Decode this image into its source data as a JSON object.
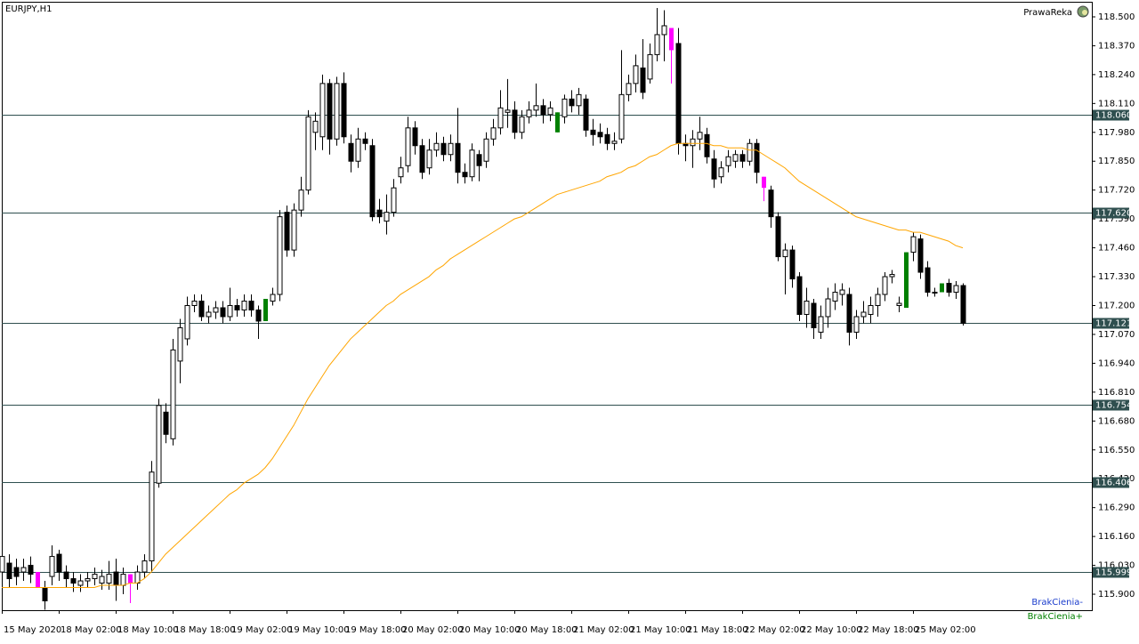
{
  "chart_data": {
    "type": "candlestick",
    "title": "EURJPY,H1",
    "expert": "PrawaReka",
    "categories": [
      "15 May 2020",
      null,
      null,
      null,
      null,
      null,
      null,
      null,
      "18 May 02:00",
      null,
      null,
      null,
      null,
      null,
      null,
      null,
      "18 May 10:00",
      null,
      null,
      null,
      null,
      null,
      null,
      null,
      "18 May 18:00",
      null,
      null,
      null,
      null,
      null,
      null,
      null,
      "19 May 02:00",
      null,
      null,
      null,
      null,
      null,
      null,
      null,
      "19 May 10:00",
      null,
      null,
      null,
      null,
      null,
      null,
      null,
      "19 May 18:00",
      null,
      null,
      null,
      null,
      null,
      null,
      null,
      "20 May 02:00",
      null,
      null,
      null,
      null,
      null,
      null,
      null,
      "20 May 10:00",
      null,
      null,
      null,
      null,
      null,
      null,
      null,
      "20 May 18:00",
      null,
      null,
      null,
      null,
      null,
      null,
      null,
      "21 May 02:00",
      null,
      null,
      null,
      null,
      null,
      null,
      null,
      "21 May 10:00",
      null,
      null,
      null,
      null,
      null,
      null,
      null,
      "21 May 18:00",
      null,
      null,
      null,
      null,
      null,
      null,
      null,
      "22 May 02:00",
      null,
      null,
      null,
      null,
      null,
      null,
      null,
      "22 May 10:00",
      null,
      null,
      null,
      null,
      null,
      null,
      null,
      "22 May 18:00",
      null,
      null,
      null,
      null,
      null,
      null,
      null,
      "25 May 02:00",
      null,
      null,
      null,
      null,
      null,
      null,
      null
    ],
    "open": [
      116.0,
      116.04,
      116.02,
      116.0,
      116.03,
      116.0,
      115.93,
      115.98,
      116.08,
      116.0,
      115.97,
      115.94,
      115.96,
      115.97,
      115.95,
      115.95,
      116.0,
      115.94,
      115.99,
      115.95,
      116.0,
      116.05,
      116.4,
      116.72,
      116.6,
      116.95,
      117.05,
      117.2,
      117.22,
      117.15,
      117.17,
      117.19,
      117.15,
      117.2,
      117.18,
      117.22,
      117.18,
      117.13,
      117.22,
      117.25,
      117.62,
      117.45,
      117.63,
      117.72,
      117.98,
      117.96,
      118.2,
      117.95,
      118.2,
      117.93,
      117.85,
      117.95,
      117.92,
      117.63,
      117.58,
      117.62,
      117.78,
      117.83,
      118.0,
      117.92,
      117.82,
      117.9,
      117.93,
      117.88,
      117.93,
      117.8,
      117.78,
      117.88,
      117.85,
      117.95,
      118.0,
      118.07,
      118.08,
      117.98,
      118.05,
      118.08,
      118.1,
      118.06,
      117.98,
      118.05,
      118.13,
      118.1,
      118.13,
      117.99,
      117.98,
      117.97,
      117.93,
      117.95,
      118.15,
      118.2,
      118.27,
      118.22,
      118.33,
      118.42,
      118.45,
      118.38,
      117.93,
      117.92,
      117.95,
      117.97,
      117.86,
      117.78,
      117.83,
      117.85,
      117.88,
      117.85,
      117.93,
      117.78,
      117.72,
      117.6,
      117.42,
      117.45,
      117.33,
      117.16,
      117.21,
      117.08,
      117.15,
      117.22,
      117.25,
      117.25,
      117.08,
      117.15,
      117.16,
      117.2,
      117.25,
      117.33,
      117.2,
      117.19,
      117.44,
      117.5,
      117.37,
      117.26,
      117.26,
      117.3,
      117.26,
      117.29
    ],
    "high": [
      116.2,
      116.08,
      116.06,
      116.06,
      116.07,
      116.0,
      115.96,
      116.12,
      116.1,
      116.03,
      116.0,
      115.99,
      116.0,
      116.02,
      116.01,
      116.05,
      116.06,
      116.02,
      115.99,
      116.03,
      116.08,
      116.5,
      116.78,
      116.76,
      117.05,
      117.14,
      117.24,
      117.25,
      117.25,
      117.2,
      117.22,
      117.22,
      117.28,
      117.23,
      117.25,
      117.25,
      117.2,
      117.23,
      117.28,
      117.63,
      117.65,
      117.66,
      117.78,
      118.08,
      118.07,
      118.24,
      118.22,
      118.23,
      118.25,
      117.97,
      118.0,
      117.98,
      117.95,
      117.68,
      117.7,
      117.77,
      117.87,
      118.05,
      118.03,
      117.95,
      117.95,
      117.98,
      117.96,
      117.97,
      118.09,
      117.84,
      117.93,
      117.9,
      117.98,
      118.04,
      118.17,
      118.22,
      118.12,
      118.08,
      118.12,
      118.2,
      118.13,
      118.12,
      118.07,
      118.15,
      118.17,
      118.18,
      118.15,
      118.04,
      118.02,
      118.0,
      117.98,
      118.35,
      118.24,
      118.33,
      118.4,
      118.38,
      118.54,
      118.53,
      118.45,
      118.45,
      117.97,
      117.99,
      118.05,
      118.0,
      117.9,
      117.85,
      117.9,
      117.9,
      117.9,
      117.95,
      117.95,
      117.78,
      117.74,
      117.62,
      117.48,
      117.47,
      117.35,
      117.28,
      117.23,
      117.2,
      117.28,
      117.3,
      117.3,
      117.28,
      117.18,
      117.22,
      117.24,
      117.28,
      117.35,
      117.36,
      117.24,
      117.44,
      117.53,
      117.52,
      117.4,
      117.28,
      117.3,
      117.32,
      117.31,
      117.3
    ],
    "low": [
      115.96,
      115.93,
      115.94,
      115.96,
      115.95,
      115.93,
      115.83,
      115.94,
      115.96,
      115.93,
      115.91,
      115.91,
      115.93,
      115.94,
      115.92,
      115.92,
      115.87,
      115.9,
      115.86,
      115.92,
      115.97,
      116.0,
      116.38,
      116.58,
      116.57,
      116.85,
      117.02,
      117.17,
      117.13,
      117.12,
      117.14,
      117.12,
      117.13,
      117.15,
      117.15,
      117.15,
      117.05,
      117.13,
      117.2,
      117.22,
      117.42,
      117.42,
      117.6,
      117.7,
      117.9,
      117.9,
      117.88,
      117.92,
      117.93,
      117.8,
      117.82,
      117.9,
      117.58,
      117.57,
      117.52,
      117.6,
      117.75,
      117.8,
      117.88,
      117.77,
      117.79,
      117.87,
      117.85,
      117.85,
      117.75,
      117.75,
      117.76,
      117.76,
      117.82,
      117.92,
      117.97,
      118.0,
      117.95,
      117.95,
      118.02,
      118.05,
      118.02,
      118.03,
      117.98,
      118.02,
      118.07,
      118.06,
      117.96,
      117.92,
      117.93,
      117.9,
      117.9,
      117.93,
      118.12,
      118.16,
      118.13,
      118.2,
      118.3,
      118.3,
      118.2,
      117.88,
      117.85,
      117.82,
      117.9,
      117.84,
      117.73,
      117.75,
      117.8,
      117.82,
      117.82,
      117.83,
      117.75,
      117.67,
      117.55,
      117.4,
      117.25,
      117.28,
      117.13,
      117.1,
      117.05,
      117.05,
      117.1,
      117.18,
      117.2,
      117.02,
      117.05,
      117.12,
      117.12,
      117.15,
      117.22,
      117.3,
      117.17,
      117.19,
      117.4,
      117.32,
      117.24,
      117.24,
      117.26,
      117.24,
      117.23,
      117.11
    ],
    "close": [
      116.07,
      115.97,
      115.98,
      116.02,
      115.99,
      115.93,
      115.87,
      116.07,
      116.0,
      115.97,
      115.95,
      115.96,
      115.97,
      115.99,
      115.98,
      115.99,
      115.94,
      115.99,
      115.95,
      116.0,
      116.05,
      116.45,
      116.75,
      116.62,
      117.0,
      117.1,
      117.2,
      117.22,
      117.15,
      117.17,
      117.19,
      117.15,
      117.2,
      117.18,
      117.22,
      117.18,
      117.13,
      117.23,
      117.25,
      117.6,
      117.45,
      117.63,
      117.72,
      118.05,
      118.03,
      118.2,
      117.95,
      118.2,
      117.96,
      117.85,
      117.95,
      117.93,
      117.6,
      117.6,
      117.62,
      117.73,
      117.82,
      118.0,
      117.92,
      117.8,
      117.9,
      117.93,
      117.88,
      117.93,
      117.8,
      117.78,
      117.9,
      117.83,
      117.95,
      118.0,
      118.09,
      118.08,
      117.98,
      118.05,
      118.08,
      118.1,
      118.06,
      118.09,
      118.07,
      118.13,
      118.1,
      118.15,
      117.99,
      117.97,
      117.96,
      117.93,
      117.94,
      118.15,
      118.2,
      118.28,
      118.16,
      118.33,
      118.42,
      118.46,
      118.35,
      117.93,
      117.92,
      117.95,
      117.98,
      117.87,
      117.77,
      117.82,
      117.87,
      117.88,
      117.85,
      117.93,
      117.8,
      117.73,
      117.6,
      117.42,
      117.45,
      117.32,
      117.16,
      117.22,
      117.1,
      117.15,
      117.23,
      117.26,
      117.27,
      117.08,
      117.15,
      117.17,
      117.2,
      117.25,
      117.33,
      117.34,
      117.21,
      117.44,
      117.51,
      117.35,
      117.26,
      117.26,
      117.3,
      117.26,
      117.29,
      117.12
    ],
    "ma": {
      "color": "#ffa500",
      "values": [
        115.93,
        115.93,
        115.93,
        115.93,
        115.93,
        115.93,
        115.93,
        115.93,
        115.93,
        115.93,
        115.93,
        115.93,
        115.93,
        115.93,
        115.94,
        115.94,
        115.94,
        115.94,
        115.95,
        115.95,
        115.97,
        116.0,
        116.04,
        116.08,
        116.11,
        116.14,
        116.17,
        116.2,
        116.23,
        116.26,
        116.29,
        116.32,
        116.35,
        116.37,
        116.4,
        116.42,
        116.44,
        116.47,
        116.51,
        116.56,
        116.61,
        116.66,
        116.72,
        116.78,
        116.83,
        116.88,
        116.93,
        116.97,
        117.01,
        117.05,
        117.08,
        117.11,
        117.14,
        117.17,
        117.2,
        117.22,
        117.25,
        117.27,
        117.29,
        117.31,
        117.33,
        117.36,
        117.38,
        117.41,
        117.43,
        117.45,
        117.47,
        117.49,
        117.51,
        117.53,
        117.55,
        117.57,
        117.59,
        117.6,
        117.62,
        117.64,
        117.66,
        117.68,
        117.7,
        117.71,
        117.72,
        117.73,
        117.74,
        117.75,
        117.76,
        117.78,
        117.79,
        117.8,
        117.82,
        117.83,
        117.85,
        117.87,
        117.88,
        117.9,
        117.92,
        117.93,
        117.93,
        117.93,
        117.93,
        117.93,
        117.92,
        117.92,
        117.91,
        117.91,
        117.91,
        117.9,
        117.9,
        117.88,
        117.86,
        117.84,
        117.82,
        117.79,
        117.76,
        117.74,
        117.72,
        117.7,
        117.68,
        117.66,
        117.64,
        117.62,
        117.6,
        117.59,
        117.58,
        117.57,
        117.56,
        117.55,
        117.54,
        117.54,
        117.53,
        117.53,
        117.52,
        117.51,
        117.5,
        117.49,
        117.47,
        117.46
      ]
    },
    "highlights": [
      {
        "name": "BrakCienia-",
        "color": "#ff00ff",
        "legend_color": "#1a3ccc",
        "candles": [
          5,
          18,
          94,
          107
        ]
      },
      {
        "name": "BrakCienia+",
        "color": "#008000",
        "legend_color": "#008000",
        "candles": [
          37,
          78,
          127,
          132
        ]
      }
    ],
    "levels": [
      {
        "value": 118.06,
        "label": "118.060"
      },
      {
        "value": 117.62,
        "label": "117.620"
      },
      {
        "value": 117.121,
        "label": "117.121"
      },
      {
        "value": 116.754,
        "label": "116.754"
      },
      {
        "value": 116.406,
        "label": "116.406"
      },
      {
        "value": 115.999,
        "label": "115.999"
      }
    ],
    "level_color": "#2f4f4f",
    "ylim": [
      115.828,
      118.568
    ],
    "yticks": [
      {
        "value": 118.5,
        "label": "118.500"
      },
      {
        "value": 118.37,
        "label": "118.370"
      },
      {
        "value": 118.24,
        "label": "118.240"
      },
      {
        "value": 118.11,
        "label": "118.110"
      },
      {
        "value": 117.98,
        "label": "117.980"
      },
      {
        "value": 117.85,
        "label": "117.850"
      },
      {
        "value": 117.72,
        "label": "117.720"
      },
      {
        "value": 117.59,
        "label": "117.590"
      },
      {
        "value": 117.46,
        "label": "117.460"
      },
      {
        "value": 117.33,
        "label": "117.330"
      },
      {
        "value": 117.2,
        "label": "117.200"
      },
      {
        "value": 117.07,
        "label": "117.070"
      },
      {
        "value": 116.94,
        "label": "116.940"
      },
      {
        "value": 116.81,
        "label": "116.810"
      },
      {
        "value": 116.68,
        "label": "116.680"
      },
      {
        "value": 116.55,
        "label": "116.550"
      },
      {
        "value": 116.42,
        "label": "116.420"
      },
      {
        "value": 116.29,
        "label": "116.290"
      },
      {
        "value": 116.16,
        "label": "116.160"
      },
      {
        "value": 116.03,
        "label": "116.030"
      },
      {
        "value": 115.9,
        "label": "115.900"
      }
    ],
    "grid": false
  }
}
